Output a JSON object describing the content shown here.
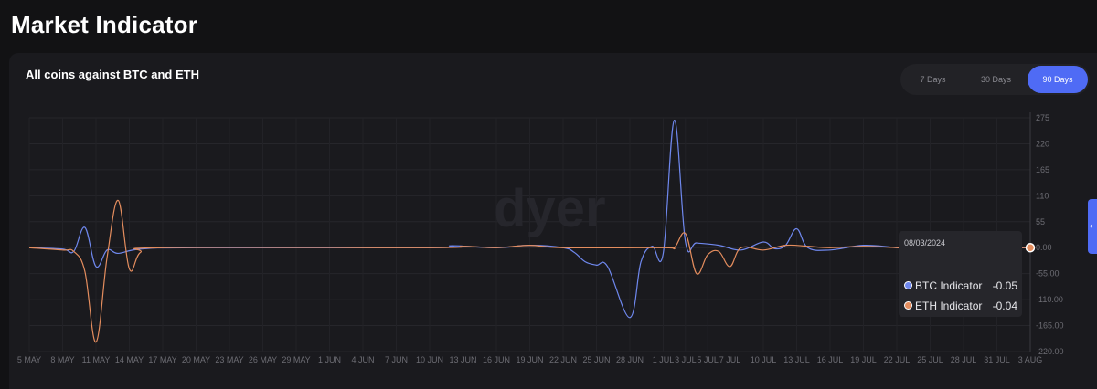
{
  "page_title": "Market Indicator",
  "card_title": "All coins against BTC and ETH",
  "range_toggle": [
    "7 Days",
    "30 Days",
    "90 Days"
  ],
  "range_selected": "90 Days",
  "watermark": "dyer",
  "tooltip": {
    "date": "08/03/2024",
    "rows": [
      {
        "name": "BTC Indicator",
        "value": "-0.05",
        "color": "#6f88ee"
      },
      {
        "name": "ETH Indicator",
        "value": "-0.04",
        "color": "#e48d5e"
      }
    ]
  },
  "chart_data": {
    "type": "line",
    "x_labels": [
      "5 MAY",
      "8 MAY",
      "11 MAY",
      "14 MAY",
      "17 MAY",
      "20 MAY",
      "23 MAY",
      "26 MAY",
      "29 MAY",
      "1 JUN",
      "4 JUN",
      "7 JUN",
      "10 JUN",
      "13 JUN",
      "16 JUN",
      "19 JUN",
      "22 JUN",
      "25 JUN",
      "28 JUN",
      "1 JUL",
      "3 JUL",
      "5 JUL",
      "7 JUL",
      "10 JUL",
      "13 JUL",
      "16 JUL",
      "19 JUL",
      "22 JUL",
      "25 JUL",
      "28 JUL",
      "31 JUL",
      "3 AUG"
    ],
    "y_ticks": [
      "275",
      "220",
      "165",
      "110",
      "55",
      "0.00",
      "-55.00",
      "-110.00",
      "-165.00",
      "-220.00"
    ],
    "ylim": [
      -220,
      275
    ],
    "series": [
      {
        "name": "BTC Indicator",
        "color": "#6f88ee",
        "points": [
          [
            "5 MAY",
            0
          ],
          [
            "8 MAY",
            -3
          ],
          [
            "9 MAY",
            -8
          ],
          [
            "10 MAY",
            43
          ],
          [
            "11 MAY",
            -40
          ],
          [
            "12 MAY",
            -5
          ],
          [
            "13 MAY",
            -12
          ],
          [
            "15 MAY",
            -3
          ],
          [
            "20 MAY",
            0
          ],
          [
            "10 JUN",
            0
          ],
          [
            "12 JUN",
            4
          ],
          [
            "16 JUN",
            0
          ],
          [
            "19 JUN",
            5
          ],
          [
            "22 JUN",
            0
          ],
          [
            "23 JUN",
            -10
          ],
          [
            "24 JUN",
            -30
          ],
          [
            "25 JUN",
            -37
          ],
          [
            "26 JUN",
            -40
          ],
          [
            "28 JUN",
            -148
          ],
          [
            "29 JUN",
            -30
          ],
          [
            "30 JUN",
            3
          ],
          [
            "1 JUL",
            -12
          ],
          [
            "2 JUL",
            270
          ],
          [
            "3 JUL",
            12
          ],
          [
            "4 JUL",
            10
          ],
          [
            "6 JUL",
            5
          ],
          [
            "8 JUL",
            -5
          ],
          [
            "10 JUL",
            12
          ],
          [
            "11 JUL",
            -2
          ],
          [
            "12 JUL",
            5
          ],
          [
            "13 JUL",
            40
          ],
          [
            "14 JUL",
            0
          ],
          [
            "16 JUL",
            -5
          ],
          [
            "19 JUL",
            5
          ],
          [
            "22 JUL",
            0
          ],
          [
            "25 JUL",
            -5
          ],
          [
            "28 JUL",
            0
          ],
          [
            "3 AUG",
            -0.05
          ]
        ]
      },
      {
        "name": "ETH Indicator",
        "color": "#e48d5e",
        "points": [
          [
            "5 MAY",
            0
          ],
          [
            "8 MAY",
            -5
          ],
          [
            "9 MAY",
            -8
          ],
          [
            "10 MAY",
            -50
          ],
          [
            "11 MAY",
            -200
          ],
          [
            "12 MAY",
            -20
          ],
          [
            "13 MAY",
            100
          ],
          [
            "14 MAY",
            -45
          ],
          [
            "15 MAY",
            -10
          ],
          [
            "17 MAY",
            0
          ],
          [
            "10 JUN",
            0
          ],
          [
            "13 JUN",
            3
          ],
          [
            "16 JUN",
            0
          ],
          [
            "19 JUN",
            5
          ],
          [
            "22 JUN",
            0
          ],
          [
            "1 JUL",
            0
          ],
          [
            "2 JUL",
            0
          ],
          [
            "3 JUL",
            30
          ],
          [
            "4 JUL",
            -55
          ],
          [
            "5 JUL",
            -15
          ],
          [
            "6 JUL",
            -8
          ],
          [
            "7 JUL",
            -40
          ],
          [
            "8 JUL",
            0
          ],
          [
            "10 JUL",
            -5
          ],
          [
            "12 JUL",
            5
          ],
          [
            "14 JUL",
            3
          ],
          [
            "16 JUL",
            0
          ],
          [
            "19 JUL",
            3
          ],
          [
            "22 JUL",
            0
          ],
          [
            "25 JUL",
            -3
          ],
          [
            "28 JUL",
            0
          ],
          [
            "3 AUG",
            -0.04
          ]
        ]
      }
    ]
  }
}
